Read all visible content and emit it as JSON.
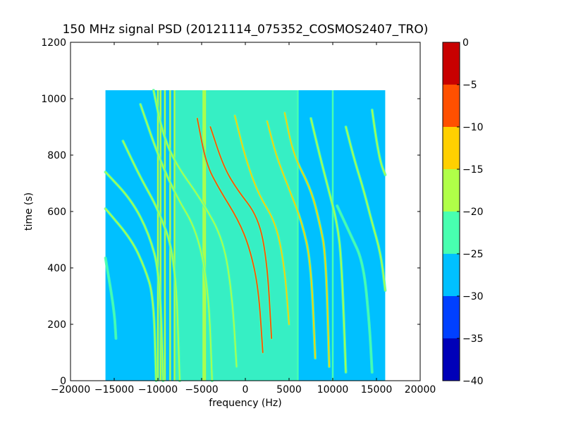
{
  "chart_data": {
    "type": "heatmap",
    "title": "150 MHz signal PSD (20121114_075352_COSMOS2407_TRO)",
    "xlabel": "frequency (Hz)",
    "ylabel": "time (s)",
    "xlim": [
      -20000,
      20000
    ],
    "ylim": [
      0,
      1200
    ],
    "x_ticks": [
      {
        "value": -20000,
        "label": "−20000"
      },
      {
        "value": -15000,
        "label": "−15000"
      },
      {
        "value": -10000,
        "label": "−10000"
      },
      {
        "value": -5000,
        "label": "−5000"
      },
      {
        "value": 0,
        "label": "0"
      },
      {
        "value": 5000,
        "label": "5000"
      },
      {
        "value": 10000,
        "label": "10000"
      },
      {
        "value": 15000,
        "label": "15000"
      },
      {
        "value": 20000,
        "label": "20000"
      }
    ],
    "y_ticks": [
      {
        "value": 0,
        "label": "0"
      },
      {
        "value": 200,
        "label": "200"
      },
      {
        "value": 400,
        "label": "400"
      },
      {
        "value": 600,
        "label": "600"
      },
      {
        "value": 800,
        "label": "800"
      },
      {
        "value": 1000,
        "label": "1000"
      },
      {
        "value": 1200,
        "label": "1200"
      }
    ],
    "data_extent": {
      "x": [
        -16000,
        16000
      ],
      "y": [
        0,
        1030
      ]
    },
    "background_level": -28,
    "central_noise_band": {
      "x": [
        -8000,
        6000
      ],
      "level": -24
    },
    "vertical_lines": [
      {
        "x": -10000,
        "level": -18
      },
      {
        "x": -9700,
        "level": -20
      },
      {
        "x": -9200,
        "level": -17
      },
      {
        "x": -8600,
        "level": -18
      },
      {
        "x": -8100,
        "level": -20
      },
      {
        "x": -4800,
        "level": -20
      },
      {
        "x": -4600,
        "level": -18
      },
      {
        "x": 6000,
        "level": -22
      },
      {
        "x": 10000,
        "level": -22
      }
    ],
    "tracks": [
      {
        "points": [
          [
            -16000,
            740
          ],
          [
            -13000,
            640
          ],
          [
            -11000,
            520
          ],
          [
            -9800,
            380
          ],
          [
            -9400,
            0
          ]
        ],
        "level": -18
      },
      {
        "points": [
          [
            -16000,
            610
          ],
          [
            -13000,
            500
          ],
          [
            -11500,
            400
          ],
          [
            -10500,
            300
          ],
          [
            -10200,
            0
          ]
        ],
        "level": -20
      },
      {
        "points": [
          [
            -16000,
            435
          ],
          [
            -15000,
            250
          ],
          [
            -14800,
            150
          ]
        ],
        "level": -22
      },
      {
        "points": [
          [
            -14000,
            850
          ],
          [
            -12000,
            720
          ],
          [
            -10000,
            610
          ],
          [
            -8000,
            440
          ],
          [
            -7500,
            0
          ]
        ],
        "level": -16
      },
      {
        "points": [
          [
            -12000,
            980
          ],
          [
            -10000,
            800
          ],
          [
            -8000,
            660
          ],
          [
            -5500,
            530
          ],
          [
            -4200,
            320
          ],
          [
            -3800,
            0
          ]
        ],
        "level": -17
      },
      {
        "points": [
          [
            -10500,
            1030
          ],
          [
            -9500,
            880
          ],
          [
            -8000,
            770
          ],
          [
            -5000,
            640
          ],
          [
            -2500,
            500
          ],
          [
            -1500,
            300
          ],
          [
            -1000,
            50
          ]
        ],
        "level": -16
      },
      {
        "points": [
          [
            -5500,
            930
          ],
          [
            -4500,
            770
          ],
          [
            -3000,
            680
          ],
          [
            -800,
            570
          ],
          [
            500,
            470
          ],
          [
            1500,
            330
          ],
          [
            2000,
            100
          ]
        ],
        "level": -8
      },
      {
        "points": [
          [
            -4000,
            900
          ],
          [
            -2500,
            760
          ],
          [
            -1000,
            680
          ],
          [
            1500,
            580
          ],
          [
            2500,
            420
          ],
          [
            3000,
            150
          ]
        ],
        "level": -10
      },
      {
        "points": [
          [
            -1200,
            940
          ],
          [
            0,
            790
          ],
          [
            1500,
            660
          ],
          [
            3500,
            560
          ],
          [
            4500,
            400
          ],
          [
            5000,
            200
          ]
        ],
        "level": -12
      },
      {
        "points": [
          [
            2500,
            920
          ],
          [
            3500,
            800
          ],
          [
            5000,
            680
          ],
          [
            6500,
            560
          ],
          [
            7500,
            420
          ],
          [
            8000,
            80
          ]
        ],
        "level": -15
      },
      {
        "points": [
          [
            4500,
            950
          ],
          [
            5500,
            800
          ],
          [
            7500,
            680
          ],
          [
            8500,
            560
          ],
          [
            9200,
            450
          ],
          [
            9600,
            50
          ]
        ],
        "level": -13
      },
      {
        "points": [
          [
            7500,
            930
          ],
          [
            8500,
            800
          ],
          [
            9500,
            680
          ],
          [
            10500,
            560
          ],
          [
            11000,
            430
          ],
          [
            11500,
            30
          ]
        ],
        "level": -18
      },
      {
        "points": [
          [
            11500,
            900
          ],
          [
            12500,
            780
          ],
          [
            13500,
            680
          ],
          [
            14500,
            560
          ],
          [
            15500,
            450
          ],
          [
            16000,
            320
          ]
        ],
        "level": -17
      },
      {
        "points": [
          [
            14500,
            960
          ],
          [
            15000,
            850
          ],
          [
            15500,
            770
          ],
          [
            16000,
            730
          ]
        ],
        "level": -18
      },
      {
        "points": [
          [
            10500,
            620
          ],
          [
            12000,
            520
          ],
          [
            13500,
            420
          ],
          [
            14200,
            200
          ],
          [
            14500,
            30
          ]
        ],
        "level": -22
      }
    ],
    "colorbar": {
      "bounds": [
        -40,
        -35,
        -30,
        -25,
        -20,
        -15,
        -10,
        -5,
        0
      ],
      "colors": [
        "#0000b8",
        "#0040ff",
        "#00c0ff",
        "#48ffb0",
        "#b0ff48",
        "#ffd000",
        "#ff5000",
        "#c80000"
      ],
      "ticks": [
        {
          "value": 0,
          "label": "0"
        },
        {
          "value": -5,
          "label": "−5"
        },
        {
          "value": -10,
          "label": "−10"
        },
        {
          "value": -15,
          "label": "−15"
        },
        {
          "value": -20,
          "label": "−20"
        },
        {
          "value": -25,
          "label": "−25"
        },
        {
          "value": -30,
          "label": "−30"
        },
        {
          "value": -35,
          "label": "−35"
        },
        {
          "value": -40,
          "label": "−40"
        }
      ]
    }
  }
}
